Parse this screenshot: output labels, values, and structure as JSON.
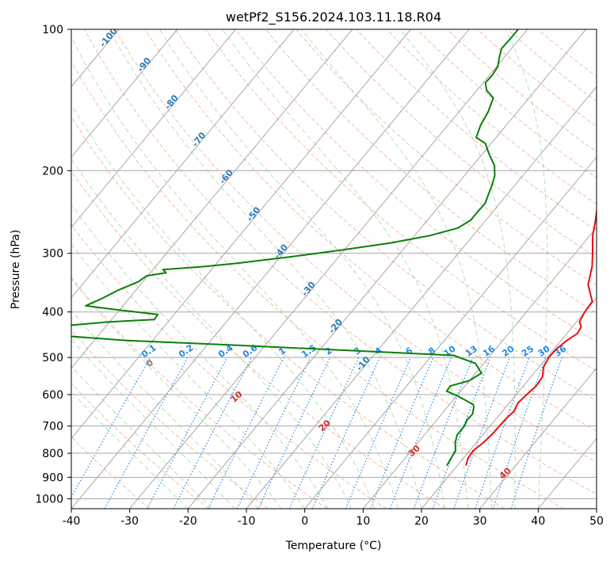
{
  "chart_data": {
    "type": "line",
    "title": "wetPf2_S156.2024.103.11.18.R04",
    "xlabel": "Temperature (°C)",
    "ylabel": "Pressure (hPa)",
    "xlim": [
      -40,
      50
    ],
    "ylim": [
      1050,
      100
    ],
    "yscale": "log",
    "x_ticks": [
      "-40",
      "-30",
      "-20",
      "-10",
      "0",
      "10",
      "20",
      "30",
      "40",
      "50"
    ],
    "y_ticks": [
      "100",
      "200",
      "300",
      "400",
      "500",
      "600",
      "700",
      "800",
      "900",
      "1000"
    ],
    "grid": true,
    "colors": {
      "temperature": "#e8100f",
      "dewpoint": "#0a800a",
      "mixing_ratio": "#1e88e5",
      "dry_adiabat": "#f4a582",
      "moist_adiabat": "#8fcf8f",
      "isotherm": "#a8a8a8",
      "isotherm_label": "#2c7bb6",
      "dry_label": "#d73027"
    },
    "series": [
      {
        "key": "temperature",
        "points": [
          [
            21.5,
            850
          ],
          [
            20.8,
            820
          ],
          [
            20.6,
            790
          ],
          [
            21.2,
            760
          ],
          [
            21.5,
            730
          ],
          [
            21.6,
            700
          ],
          [
            21.7,
            675
          ],
          [
            22.0,
            650
          ],
          [
            21.5,
            625
          ],
          [
            21.8,
            600
          ],
          [
            22.2,
            575
          ],
          [
            22.0,
            550
          ],
          [
            20.8,
            525
          ],
          [
            20.3,
            500
          ],
          [
            20.4,
            480
          ],
          [
            21.0,
            460
          ],
          [
            21.8,
            445
          ],
          [
            21.5,
            430
          ],
          [
            20.5,
            420
          ],
          [
            20.0,
            400
          ],
          [
            19.8,
            380
          ],
          [
            18.8,
            370
          ],
          [
            16.7,
            350
          ],
          [
            14.8,
            320
          ],
          [
            13.0,
            300
          ],
          [
            10.5,
            275
          ],
          [
            8.8,
            255
          ],
          [
            6.8,
            235
          ],
          [
            5.1,
            220
          ],
          [
            3.5,
            205
          ],
          [
            1.9,
            190
          ],
          [
            0.4,
            170
          ],
          [
            -0.4,
            160
          ],
          [
            -2.2,
            145
          ],
          [
            -3.6,
            130
          ],
          [
            -4.3,
            120
          ],
          [
            -4.2,
            112
          ],
          [
            -3.0,
            106
          ],
          [
            -0.9,
            100
          ]
        ]
      },
      {
        "key": "dewpoint",
        "points": [
          [
            18.2,
            850
          ],
          [
            17.9,
            820
          ],
          [
            17.6,
            790
          ],
          [
            16.4,
            760
          ],
          [
            15.6,
            730
          ],
          [
            15.6,
            700
          ],
          [
            15.2,
            680
          ],
          [
            15.3,
            660
          ],
          [
            14.6,
            640
          ],
          [
            14.1,
            630
          ],
          [
            10.3,
            605
          ],
          [
            7.6,
            590
          ],
          [
            7.5,
            575
          ],
          [
            10.0,
            560
          ],
          [
            11.0,
            540
          ],
          [
            8.6,
            515
          ],
          [
            3.7,
            495
          ],
          [
            -36.3,
            470
          ],
          [
            -54.7,
            460
          ],
          [
            -65.6,
            450
          ],
          [
            -70.0,
            440
          ],
          [
            -69.0,
            430
          ],
          [
            -60.0,
            420
          ],
          [
            -52.7,
            415
          ],
          [
            -52.8,
            405
          ],
          [
            -61.0,
            395
          ],
          [
            -66.4,
            388
          ],
          [
            -64.7,
            375
          ],
          [
            -63.1,
            360
          ],
          [
            -60.8,
            345
          ],
          [
            -60.2,
            335
          ],
          [
            -57.3,
            330
          ],
          [
            -58.3,
            325
          ],
          [
            -51.5,
            320
          ],
          [
            -46.5,
            315
          ],
          [
            -38.0,
            305
          ],
          [
            -30.2,
            295
          ],
          [
            -23.0,
            285
          ],
          [
            -17.4,
            275
          ],
          [
            -13.7,
            265
          ],
          [
            -12.6,
            255
          ],
          [
            -12.6,
            245
          ],
          [
            -12.5,
            235
          ],
          [
            -13.2,
            225
          ],
          [
            -13.9,
            215
          ],
          [
            -14.8,
            205
          ],
          [
            -16.3,
            195
          ],
          [
            -18.7,
            185
          ],
          [
            -21.0,
            175
          ],
          [
            -23.4,
            170
          ],
          [
            -23.9,
            165
          ],
          [
            -24.4,
            160
          ],
          [
            -25.0,
            150
          ],
          [
            -26.1,
            140
          ],
          [
            -28.3,
            135
          ],
          [
            -29.6,
            130
          ],
          [
            -29.5,
            125
          ],
          [
            -29.8,
            120
          ],
          [
            -30.8,
            115
          ],
          [
            -31.7,
            110
          ],
          [
            -31.6,
            105
          ],
          [
            -31.6,
            100
          ]
        ]
      }
    ],
    "isotherm_labels": [
      {
        "text": "-100",
        "t": -100
      },
      {
        "text": "-90",
        "t": -90
      },
      {
        "text": "-80",
        "t": -80
      },
      {
        "text": "-70",
        "t": -70
      },
      {
        "text": "-60",
        "t": -60
      },
      {
        "text": "-50",
        "t": -50
      },
      {
        "text": "-40",
        "t": -40
      },
      {
        "text": "-30",
        "t": -30
      },
      {
        "text": "-20",
        "t": -20
      },
      {
        "text": "-10",
        "t": -10
      }
    ],
    "mixing_ratio_labels": [
      "0.1",
      "0.2",
      "0.4",
      "0.6",
      "1",
      "1.5",
      "2",
      "3",
      "4",
      "6",
      "8",
      "10",
      "13",
      "16",
      "20",
      "25",
      "30",
      "36"
    ],
    "dry_adiabat_labels": [
      {
        "text": "0",
        "color": "gray",
        "theta": 0
      },
      {
        "text": "10",
        "color": "red",
        "theta": 10
      },
      {
        "text": "20",
        "color": "red",
        "theta": 20
      },
      {
        "text": "30",
        "color": "red",
        "theta": 30
      },
      {
        "text": "40",
        "color": "red",
        "theta": 40
      }
    ]
  }
}
